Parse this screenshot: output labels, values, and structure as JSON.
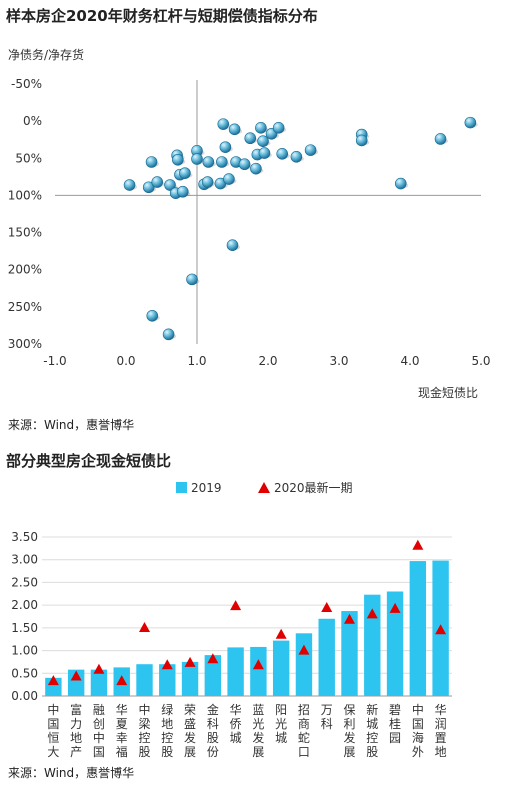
{
  "chart_data": [
    {
      "type": "scatter",
      "title": "样本房企2020年财务杠杆与短期偿债指标分布",
      "ylabel": "净债务/净存货",
      "xlabel": "现金短债比",
      "source": "来源：Wind，惠誉博华",
      "xlim": [
        -1.0,
        5.0
      ],
      "ylim": [
        -0.5,
        3.0
      ],
      "y_inverted": true,
      "x_ticks": [
        "-1.0",
        "0.0",
        "1.0",
        "2.0",
        "3.0",
        "4.0",
        "5.0"
      ],
      "y_ticks": [
        "-50%",
        "0%",
        "50%",
        "100%",
        "150%",
        "200%",
        "250%",
        "300%"
      ],
      "grid": false,
      "points": [
        {
          "x": 0.05,
          "y": 0.86
        },
        {
          "x": 0.32,
          "y": 0.89
        },
        {
          "x": 0.44,
          "y": 0.82
        },
        {
          "x": 0.36,
          "y": 0.55
        },
        {
          "x": 0.62,
          "y": 0.86
        },
        {
          "x": 0.7,
          "y": 0.97
        },
        {
          "x": 0.76,
          "y": 0.72
        },
        {
          "x": 0.83,
          "y": 0.7
        },
        {
          "x": 0.8,
          "y": 0.95
        },
        {
          "x": 0.72,
          "y": 0.46
        },
        {
          "x": 0.73,
          "y": 0.52
        },
        {
          "x": 1.0,
          "y": 0.4
        },
        {
          "x": 1.0,
          "y": 0.51
        },
        {
          "x": 1.1,
          "y": 0.85
        },
        {
          "x": 1.15,
          "y": 0.82
        },
        {
          "x": 1.16,
          "y": 0.55
        },
        {
          "x": 1.35,
          "y": 0.55
        },
        {
          "x": 1.33,
          "y": 0.84
        },
        {
          "x": 1.4,
          "y": 0.35
        },
        {
          "x": 1.45,
          "y": 0.78
        },
        {
          "x": 1.37,
          "y": 0.04
        },
        {
          "x": 1.53,
          "y": 0.11
        },
        {
          "x": 1.55,
          "y": 0.55
        },
        {
          "x": 1.67,
          "y": 0.58
        },
        {
          "x": 1.75,
          "y": 0.23
        },
        {
          "x": 1.83,
          "y": 0.64
        },
        {
          "x": 1.85,
          "y": 0.45
        },
        {
          "x": 1.9,
          "y": 0.09
        },
        {
          "x": 1.93,
          "y": 0.27
        },
        {
          "x": 1.95,
          "y": 0.43
        },
        {
          "x": 2.05,
          "y": 0.17
        },
        {
          "x": 2.15,
          "y": 0.09
        },
        {
          "x": 2.2,
          "y": 0.44
        },
        {
          "x": 2.4,
          "y": 0.48
        },
        {
          "x": 2.6,
          "y": 0.39
        },
        {
          "x": 1.5,
          "y": 1.67
        },
        {
          "x": 0.93,
          "y": 2.13
        },
        {
          "x": 0.37,
          "y": 2.62
        },
        {
          "x": 0.6,
          "y": 2.87
        },
        {
          "x": 3.32,
          "y": 0.18
        },
        {
          "x": 3.32,
          "y": 0.26
        },
        {
          "x": 3.87,
          "y": 0.84
        },
        {
          "x": 4.43,
          "y": 0.24
        },
        {
          "x": 4.85,
          "y": 0.02
        }
      ]
    },
    {
      "type": "bar",
      "title": "部分典型房企现金短债比",
      "source": "来源：Wind，惠誉博华",
      "ylim": [
        0,
        3.5
      ],
      "y_ticks": [
        "0.00",
        "0.50",
        "1.00",
        "1.50",
        "2.00",
        "2.50",
        "3.00",
        "3.50"
      ],
      "grid": true,
      "legend_position": "top",
      "categories": [
        "中国恒大",
        "富力地产",
        "融创中国",
        "华夏幸福",
        "中梁控股",
        "绿地控股",
        "荣盛发展",
        "金科股份",
        "华侨城",
        "蓝光发展",
        "阳光城",
        "招商蛇口",
        "万科",
        "保利发展",
        "新城控股",
        "碧桂园",
        "中国海外",
        "华润置地"
      ],
      "series": [
        {
          "name": "2019",
          "kind": "bar",
          "color": "#2ec4f0",
          "values": [
            0.4,
            0.58,
            0.58,
            0.63,
            0.7,
            0.7,
            0.75,
            0.9,
            1.07,
            1.08,
            1.22,
            1.38,
            1.7,
            1.87,
            2.23,
            2.3,
            2.97,
            2.98
          ]
        },
        {
          "name": "2020最新一期",
          "kind": "marker",
          "color": "#e00000",
          "values": [
            0.35,
            0.45,
            0.6,
            0.35,
            1.52,
            0.7,
            0.75,
            0.83,
            2.0,
            0.7,
            1.37,
            1.02,
            1.96,
            1.7,
            1.82,
            1.94,
            3.33,
            1.47
          ]
        }
      ]
    }
  ]
}
